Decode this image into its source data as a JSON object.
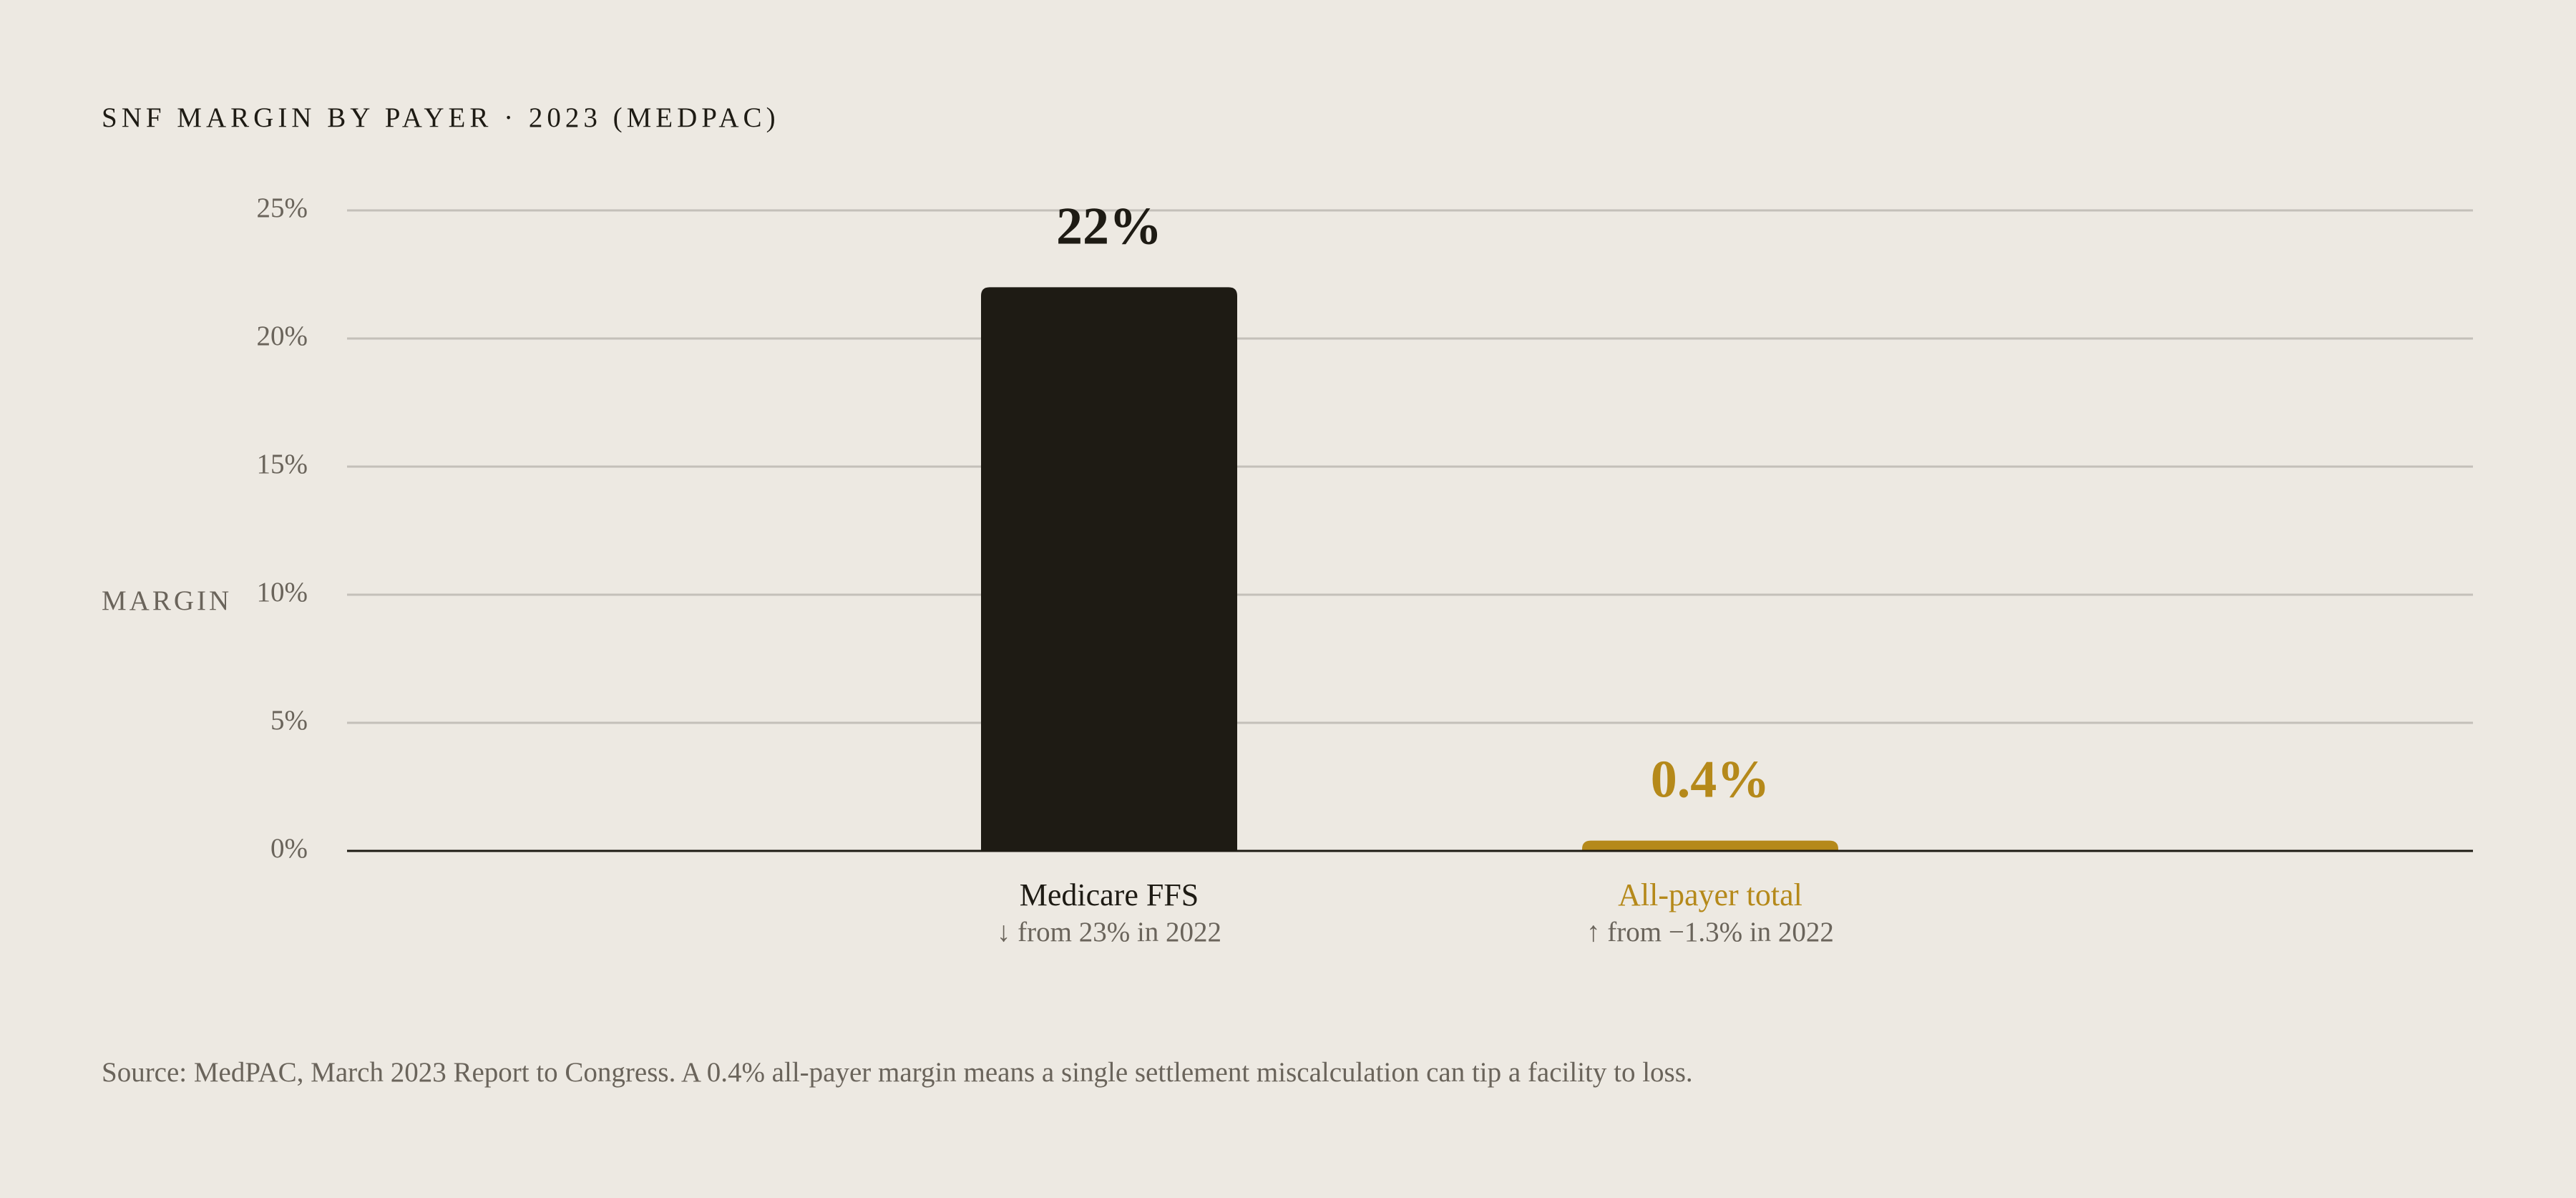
{
  "chart_data": {
    "type": "bar",
    "title": "SNF MARGIN BY PAYER · 2023 (MEDPAC)",
    "y_label": "MARGIN",
    "categories": [
      "Medicare FFS",
      "All-payer total"
    ],
    "notes": [
      "↓ from 23% in 2022",
      "↑ from −1.3% in 2022"
    ],
    "values": [
      22,
      0.4
    ],
    "value_labels": [
      "22%",
      "0.4%"
    ],
    "colors": [
      "#1e1b14",
      "#b5891a"
    ],
    "ylim": [
      0,
      25
    ],
    "yticks": [
      {
        "value": 0,
        "label": "0%"
      },
      {
        "value": 5,
        "label": "5%"
      },
      {
        "value": 10,
        "label": "10%"
      },
      {
        "value": 15,
        "label": "15%"
      },
      {
        "value": 20,
        "label": "20%"
      },
      {
        "value": 25,
        "label": "25%"
      }
    ],
    "grid": true,
    "source": "Source: MedPAC, March 2023 Report to Congress. A 0.4% all-payer margin means a single settlement miscalculation can tip a facility to loss."
  }
}
